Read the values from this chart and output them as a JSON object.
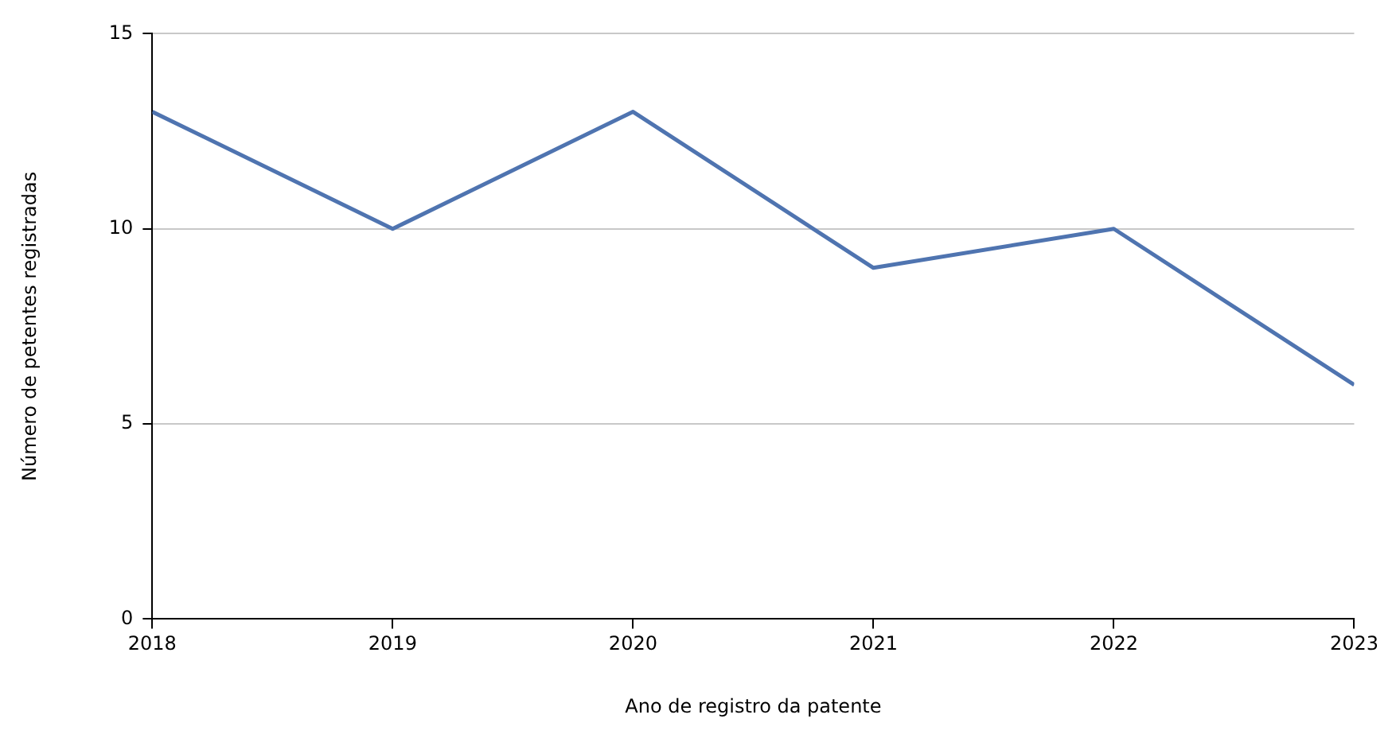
{
  "chart_data": {
    "type": "line",
    "xlabel": "Ano de registro da patente",
    "ylabel": "Número de petentes registradas",
    "x": [
      2018,
      2019,
      2020,
      2021,
      2022,
      2023
    ],
    "series": [
      {
        "color": "#4f74b0",
        "values": [
          13,
          10,
          13,
          9,
          10,
          6
        ]
      }
    ],
    "xlim": [
      2018,
      2023
    ],
    "xticks": [
      2018,
      2019,
      2020,
      2021,
      2022,
      2023
    ],
    "ylim": [
      0,
      15
    ],
    "yticks": [
      0,
      5,
      10,
      15
    ],
    "grid": "y",
    "legend": false,
    "marker": "none",
    "line_style": "solid"
  }
}
